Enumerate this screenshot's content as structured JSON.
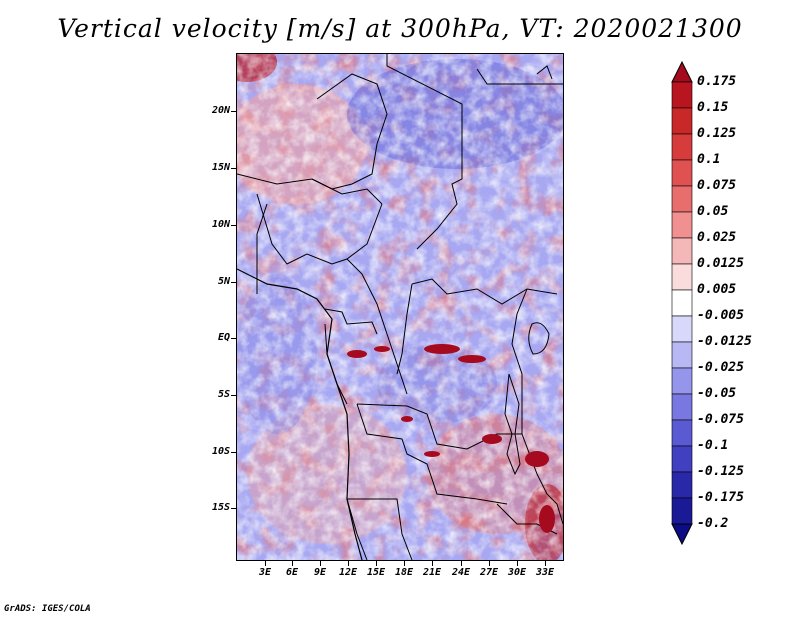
{
  "title": "Vertical velocity [m/s] at 300hPa, VT: 2020021300",
  "credit": "GrADS: IGES/COLA",
  "map": {
    "lat_labels": [
      "20N",
      "15N",
      "10N",
      "5N",
      "EQ",
      "5S",
      "10S",
      "15S"
    ],
    "lon_labels": [
      "3E",
      "6E",
      "9E",
      "12E",
      "15E",
      "18E",
      "21E",
      "24E",
      "27E",
      "30E",
      "33E"
    ]
  },
  "colorbar": {
    "labels": [
      "0.175",
      "0.15",
      "0.125",
      "0.1",
      "0.075",
      "0.05",
      "0.025",
      "0.0125",
      "0.005",
      "-0.005",
      "-0.0125",
      "-0.025",
      "-0.05",
      "-0.075",
      "-0.1",
      "-0.125",
      "-0.175",
      "-0.2"
    ],
    "colors": [
      "#a50a1e",
      "#b81520",
      "#c82828",
      "#d63c3c",
      "#e05252",
      "#e86e6e",
      "#f09090",
      "#f5b8b8",
      "#fadcdc",
      "#ffffff",
      "#d8d8fa",
      "#b8b8f5",
      "#9595ec",
      "#7878e0",
      "#5a5ad2",
      "#4040c0",
      "#2828a8",
      "#1a1a96",
      "#0c0c84"
    ]
  }
}
